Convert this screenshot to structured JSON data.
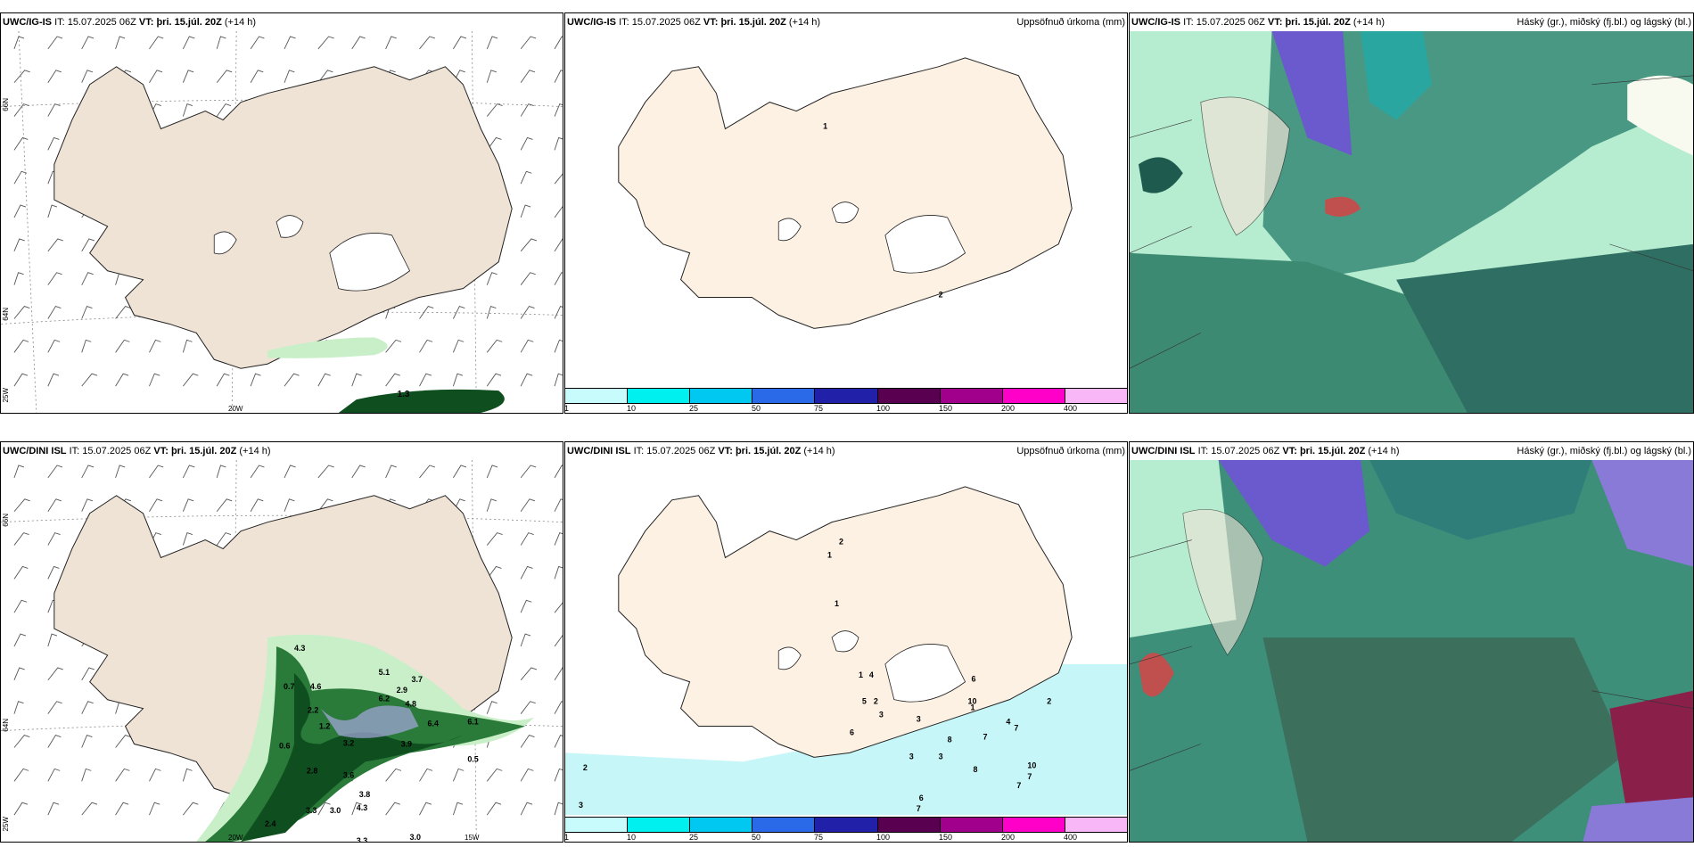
{
  "colors": {
    "land": "#efe3d6",
    "land_light": "#fdf1e4",
    "coast": "#222222",
    "green_light": "#c8efc8",
    "green_dark": "#0f4f1f",
    "cyan_light": "#c6f6f8",
    "cloud_high": "#6a5acd",
    "cloud_mid": "#2aa6a0",
    "cloud_low": "#1e7a6a",
    "cloud_bright": "#10d090"
  },
  "panels": [
    {
      "model": "UWC/IG-IS",
      "it_label": "IT:",
      "it_value": "15.07.2025 06Z",
      "vt_label": "VT:",
      "vt_value": "þri. 15.júl. 20Z",
      "lead": "(+14 h)",
      "title_right": "",
      "lat_labels": [
        "66N",
        "64N",
        "25W"
      ],
      "lon_labels": [
        "20W"
      ],
      "values": [
        "1.3"
      ]
    },
    {
      "model": "UWC/IG-IS",
      "it_label": "IT:",
      "it_value": "15.07.2025 06Z",
      "vt_label": "VT:",
      "vt_value": "þri. 15.júl. 20Z",
      "lead": "(+14 h)",
      "title_right": "Uppsöfnuð úrkoma (mm)",
      "values": [
        "1",
        "2"
      ]
    },
    {
      "model": "UWC/IG-IS",
      "it_label": "IT:",
      "it_value": "15.07.2025 06Z",
      "vt_label": "VT:",
      "vt_value": "þri. 15.júl. 20Z",
      "lead": "(+14 h)",
      "title_right": "Háský (gr.), miðský (fj.bl.) og lágský (bl.)"
    },
    {
      "model": "UWC/DINI ISL",
      "it_label": "IT:",
      "it_value": "15.07.2025 06Z",
      "vt_label": "VT:",
      "vt_value": "þri. 15.júl. 20Z",
      "lead": "(+14 h)",
      "title_right": "",
      "lat_labels": [
        "66N",
        "64N",
        "25W"
      ],
      "lon_labels": [
        "20W",
        "15W"
      ],
      "values": [
        "4.3",
        "0.7",
        "4.6",
        "5.1",
        "2.9",
        "3.7",
        "2.2",
        "6.2",
        "4.8",
        "1.2",
        "6.4",
        "6.1",
        "0.6",
        "3.2",
        "3.9",
        "0.5",
        "2.8",
        "3.6",
        "2.4",
        "3.3",
        "3.0",
        "4.3",
        "3.8",
        "3.3",
        "3.0"
      ]
    },
    {
      "model": "UWC/DINI ISL",
      "it_label": "IT:",
      "it_value": "15.07.2025 06Z",
      "vt_label": "VT:",
      "vt_value": "þri. 15.júl. 20Z",
      "lead": "(+14 h)",
      "title_right": "Uppsöfnuð úrkoma (mm)",
      "values": [
        "2",
        "1",
        "1",
        "1",
        "4",
        "5",
        "3",
        "6",
        "10",
        "2",
        "4",
        "2",
        "1",
        "3",
        "6",
        "8",
        "7",
        "7",
        "3",
        "3",
        "10",
        "8",
        "7",
        "7",
        "6",
        "7",
        "2",
        "3"
      ]
    },
    {
      "model": "UWC/DINI ISL",
      "it_label": "IT:",
      "it_value": "15.07.2025 06Z",
      "vt_label": "VT:",
      "vt_value": "þri. 15.júl. 20Z",
      "lead": "(+14 h)",
      "title_right": "Háský (gr.), miðský (fj.bl.) og lágský (bl.)"
    }
  ],
  "colorbar": {
    "colors": [
      "#c8fbfb",
      "#00f0f0",
      "#00c8f0",
      "#2a6ae8",
      "#2020a8",
      "#5a0050",
      "#a0008c",
      "#ff00c8",
      "#f8b8f8"
    ],
    "ticks": [
      "1",
      "10",
      "25",
      "50",
      "75",
      "100",
      "150",
      "200",
      "400"
    ]
  }
}
